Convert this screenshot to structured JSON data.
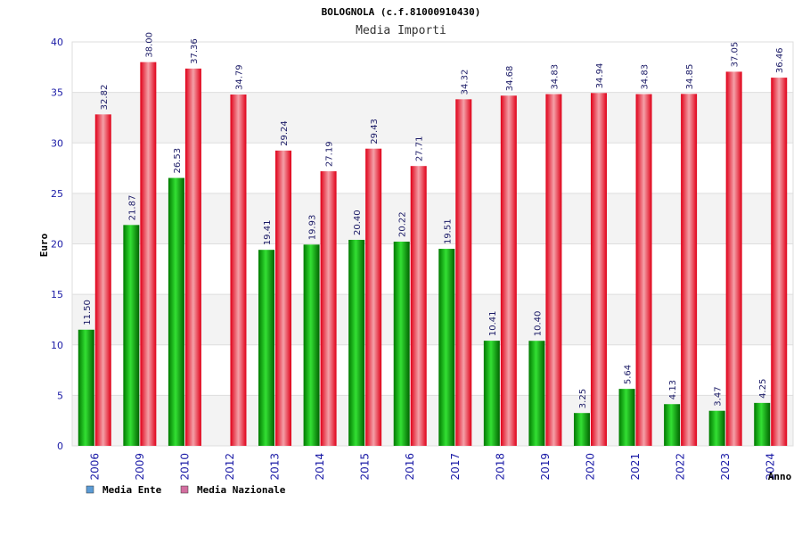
{
  "chart_data": {
    "type": "bar",
    "title": "BOLOGNOLA (c.f.81000910430)",
    "subtitle": "Media Importi",
    "xlabel": "Anno",
    "ylabel": "Euro",
    "ylim": [
      0,
      40
    ],
    "yticks": [
      0,
      5,
      10,
      15,
      20,
      25,
      30,
      35,
      40
    ],
    "grid": true,
    "legend_position": "bottom-left",
    "categories": [
      "2006",
      "2009",
      "2010",
      "2012",
      "2013",
      "2014",
      "2015",
      "2016",
      "2017",
      "2018",
      "2019",
      "2020",
      "2021",
      "2022",
      "2023",
      "2024"
    ],
    "series": [
      {
        "name": "Media Ente",
        "color": "#00a000",
        "legend_color": "#5b9bd5",
        "values": [
          11.5,
          21.87,
          26.53,
          null,
          19.41,
          19.93,
          20.4,
          20.22,
          19.51,
          10.41,
          10.4,
          3.25,
          5.64,
          4.13,
          3.47,
          4.25
        ],
        "labels": [
          "11.50",
          "21.87",
          "26.53",
          "",
          "19.41",
          "19.93",
          "20.40",
          "20.22",
          "19.51",
          "10.41",
          "10.40",
          "3.25",
          "5.64",
          "4.13",
          "3.47",
          "4.25"
        ]
      },
      {
        "name": "Media Nazionale",
        "color": "#e8001c",
        "legend_color": "#d36ea0",
        "values": [
          32.82,
          38.0,
          37.36,
          34.79,
          29.24,
          27.19,
          29.43,
          27.71,
          34.32,
          34.68,
          34.83,
          34.94,
          34.83,
          34.85,
          37.05,
          36.46
        ],
        "labels": [
          "32.82",
          "38.00",
          "37.36",
          "34.79",
          "29.24",
          "27.19",
          "29.43",
          "27.71",
          "34.32",
          "34.68",
          "34.83",
          "34.94",
          "34.83",
          "34.85",
          "37.05",
          "36.46"
        ]
      }
    ]
  }
}
